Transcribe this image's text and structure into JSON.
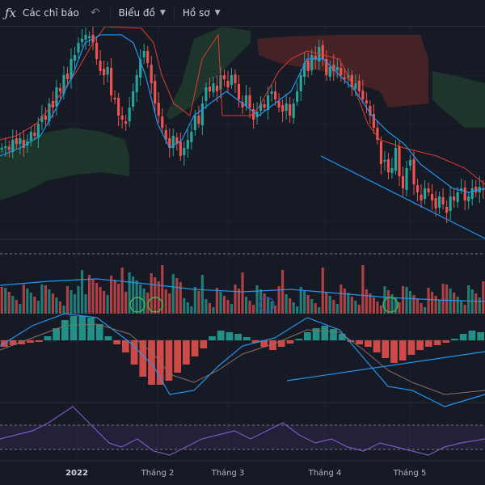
{
  "toolbar": {
    "indicators_label": "Các chỉ báo",
    "chart_label": "Biểu đồ",
    "profile_label": "Hồ sơ"
  },
  "icons": [
    "function-icon",
    "undo-icon",
    "chevron-down-icon"
  ],
  "colors": {
    "background": "#161a25",
    "up": "#26a69a",
    "down": "#ef5350",
    "cloud_green": "#1e3b2c",
    "cloud_red": "#4a2326",
    "kijun": "#e53935",
    "tenkan": "#2196f3",
    "rsi": "#7e57c2",
    "trend": "#2196f3"
  },
  "xaxis": {
    "labels": [
      "2022",
      "Tháng 2",
      "Tháng 3",
      "Tháng 4",
      "Tháng 5"
    ]
  }
}
